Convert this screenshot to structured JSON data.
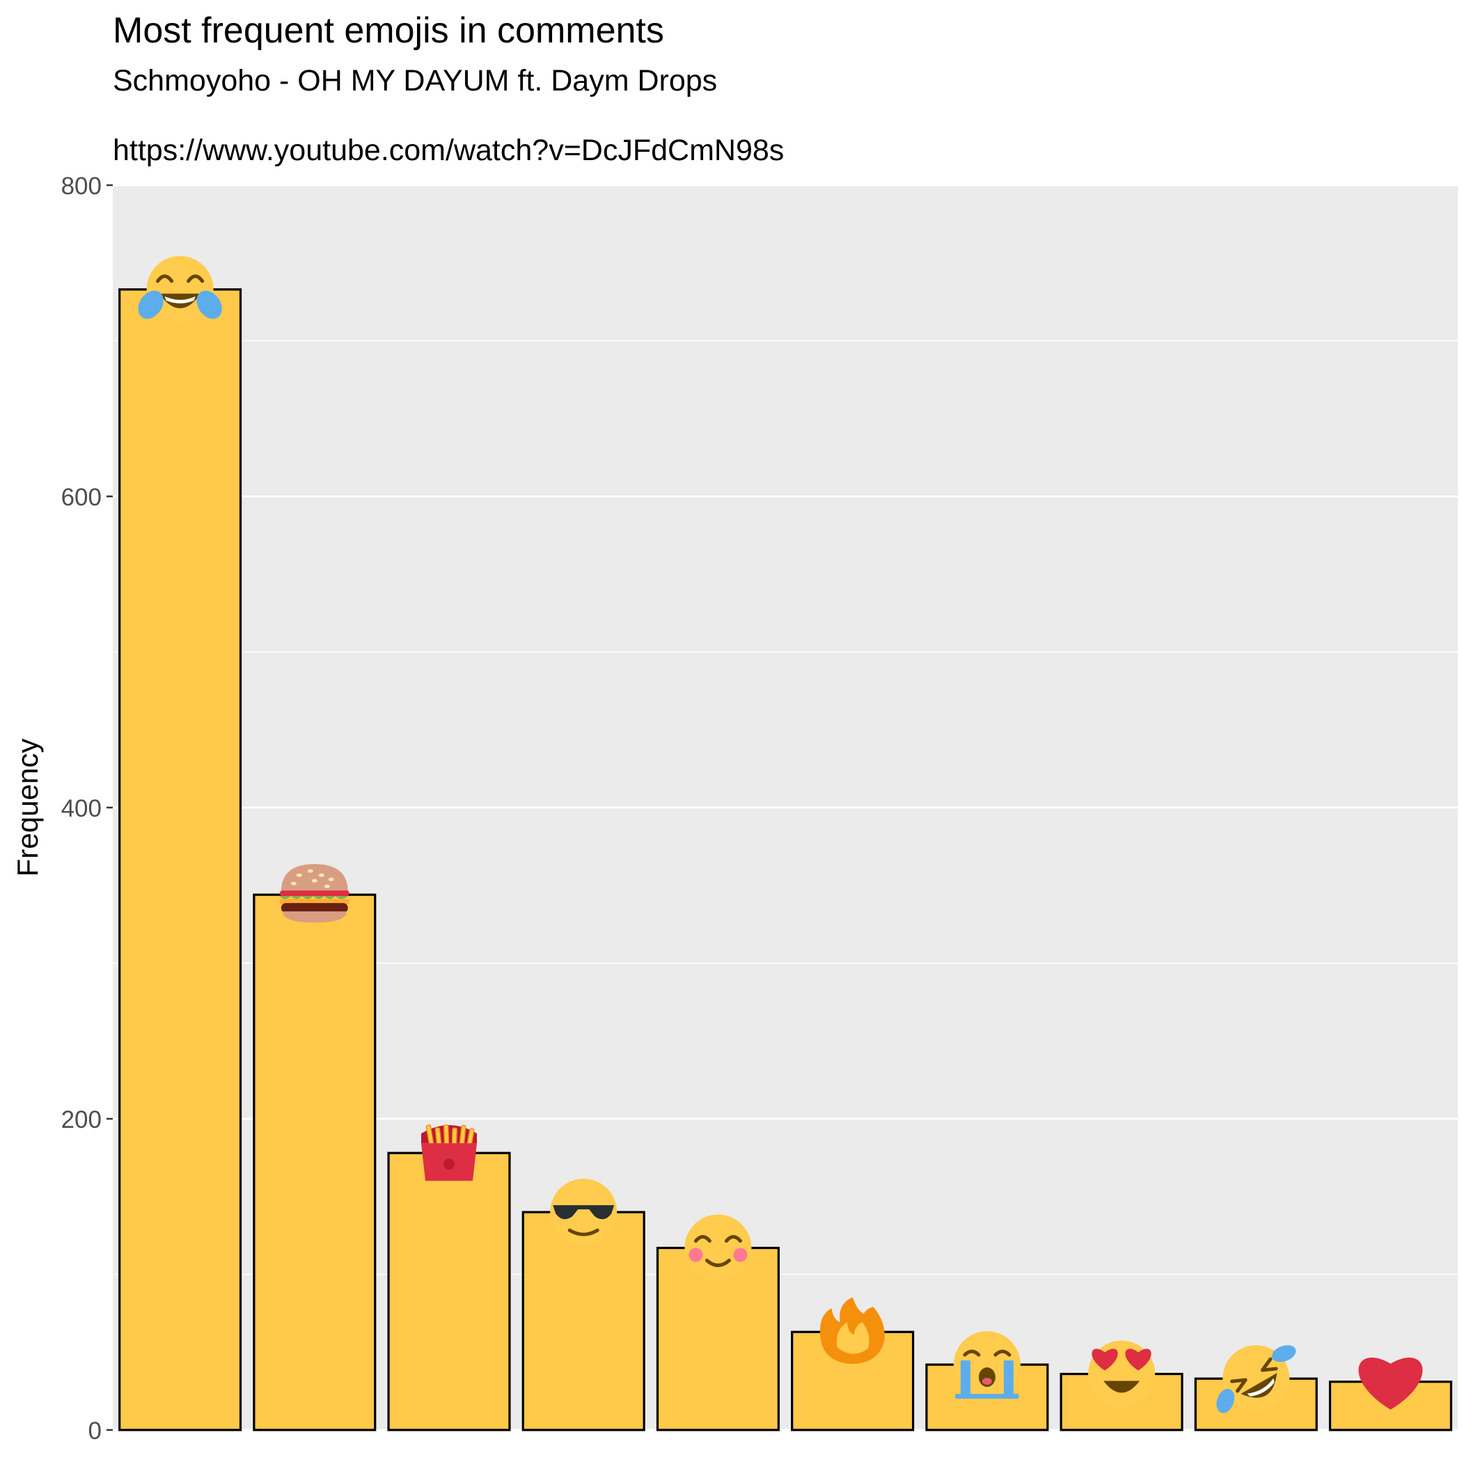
{
  "chart_data": {
    "type": "bar",
    "title": "Most frequent emojis in comments",
    "subtitle": "Schmoyoho - OH MY DAYUM ft. Daym Drops",
    "caption_url": "https://www.youtube.com/watch?v=DcJFdCmN98s",
    "xlabel": "",
    "ylabel": "Frequency",
    "ylim": [
      0,
      800
    ],
    "yticks": [
      0,
      200,
      400,
      600,
      800
    ],
    "grid": true,
    "categories": [
      "face-with-tears-of-joy",
      "hamburger",
      "french-fries",
      "smiling-face-with-sunglasses",
      "smiling-face-with-smiling-eyes",
      "fire",
      "loudly-crying-face",
      "smiling-face-with-heart-eyes",
      "rolling-on-the-floor-laughing",
      "red-heart"
    ],
    "values": [
      733,
      344,
      178,
      140,
      117,
      63,
      42,
      36,
      33,
      31
    ],
    "colors": {
      "bar_fill": "#FFC94A",
      "bar_stroke": "#000000",
      "panel_bg": "#EBEBEB",
      "grid": "#FFFFFF",
      "axis_text": "#4D4D4D"
    }
  }
}
